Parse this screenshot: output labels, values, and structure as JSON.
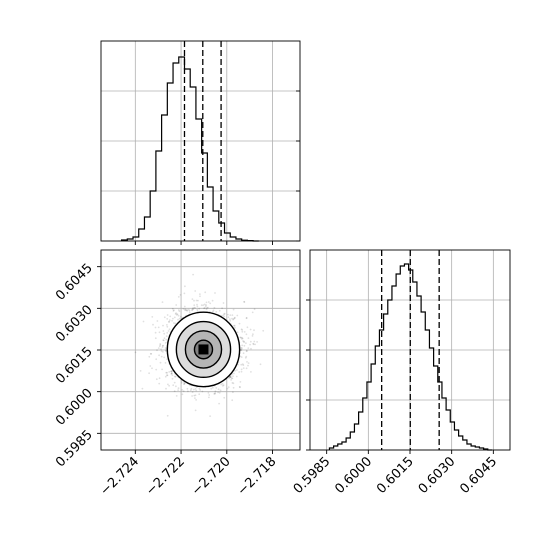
{
  "chart_data": {
    "type": "corner",
    "parameters": [
      "",
      ""
    ],
    "grid": true,
    "panels": [
      {
        "name": "hist-param-1",
        "type": "histogram",
        "xlim": [
          -2.7255,
          -2.7168
        ],
        "ylim": [
          0,
          1.0
        ],
        "bin_edges": [
          -2.7246,
          -2.72435,
          -2.7241,
          -2.72385,
          -2.7236,
          -2.72335,
          -2.7231,
          -2.72285,
          -2.7226,
          -2.72235,
          -2.7221,
          -2.72185,
          -2.7216,
          -2.72135,
          -2.7211,
          -2.72085,
          -2.7206,
          -2.72035,
          -2.7201,
          -2.71985,
          -2.7196,
          -2.71935,
          -2.7191,
          -2.71885,
          -2.7186
        ],
        "counts": [
          0.005,
          0.01,
          0.02,
          0.06,
          0.12,
          0.25,
          0.45,
          0.63,
          0.79,
          0.89,
          0.92,
          0.86,
          0.77,
          0.61,
          0.44,
          0.27,
          0.15,
          0.09,
          0.04,
          0.02,
          0.01,
          0.004,
          0.002,
          0.0
        ],
        "quantile_lines": [
          -2.72185,
          -2.72105,
          -2.72025
        ],
        "xticks": [
          -2.724,
          -2.722,
          -2.72,
          -2.718
        ],
        "yticks": [
          0,
          0.25,
          0.5,
          0.75
        ]
      },
      {
        "name": "joint-param-1-2",
        "type": "2d-density",
        "xlim": [
          -2.7255,
          -2.7168
        ],
        "ylim": [
          0.5979,
          0.6051
        ],
        "center": [
          -2.72102,
          0.60152
        ],
        "sigma": [
          0.00079,
          0.00067
        ],
        "xticks": [
          -2.724,
          -2.722,
          -2.72,
          -2.718
        ],
        "xtick_labels": [
          "−2.724",
          "−2.722",
          "−2.720",
          "−2.718"
        ],
        "yticks": [
          0.5985,
          0.6,
          0.6015,
          0.603,
          0.6045
        ],
        "ytick_labels": [
          "0.5985",
          "0.6000",
          "0.6015",
          "0.6030",
          "0.6045"
        ]
      },
      {
        "name": "hist-param-2",
        "type": "histogram",
        "xlim": [
          0.5979,
          0.6051
        ],
        "ylim": [
          0,
          1.0
        ],
        "bin_edges": [
          0.5986,
          0.59875,
          0.5989,
          0.59905,
          0.5992,
          0.59935,
          0.5995,
          0.59965,
          0.5998,
          0.59995,
          0.6001,
          0.60025,
          0.6004,
          0.60055,
          0.6007,
          0.60085,
          0.601,
          0.60115,
          0.6013,
          0.60145,
          0.6016,
          0.60175,
          0.6019,
          0.60205,
          0.6022,
          0.60235,
          0.6025,
          0.60265,
          0.6028,
          0.60295,
          0.6031,
          0.60325,
          0.6034,
          0.60355,
          0.6037,
          0.60385,
          0.604,
          0.60415,
          0.6043,
          0.60445
        ],
        "counts": [
          0.01,
          0.02,
          0.03,
          0.04,
          0.06,
          0.09,
          0.13,
          0.19,
          0.26,
          0.34,
          0.43,
          0.52,
          0.6,
          0.68,
          0.75,
          0.82,
          0.88,
          0.92,
          0.93,
          0.9,
          0.84,
          0.77,
          0.69,
          0.6,
          0.51,
          0.42,
          0.34,
          0.26,
          0.2,
          0.14,
          0.1,
          0.07,
          0.05,
          0.03,
          0.02,
          0.015,
          0.01,
          0.005,
          0.0
        ],
        "quantile_lines": [
          0.60048,
          0.60151,
          0.60255
        ],
        "xticks": [
          0.5985,
          0.6,
          0.6015,
          0.603,
          0.6045
        ],
        "xtick_labels": [
          "0.5985",
          "0.6000",
          "0.6015",
          "0.6030",
          "0.6045"
        ],
        "yticks": [
          0,
          0.25,
          0.5,
          0.75
        ]
      }
    ]
  }
}
